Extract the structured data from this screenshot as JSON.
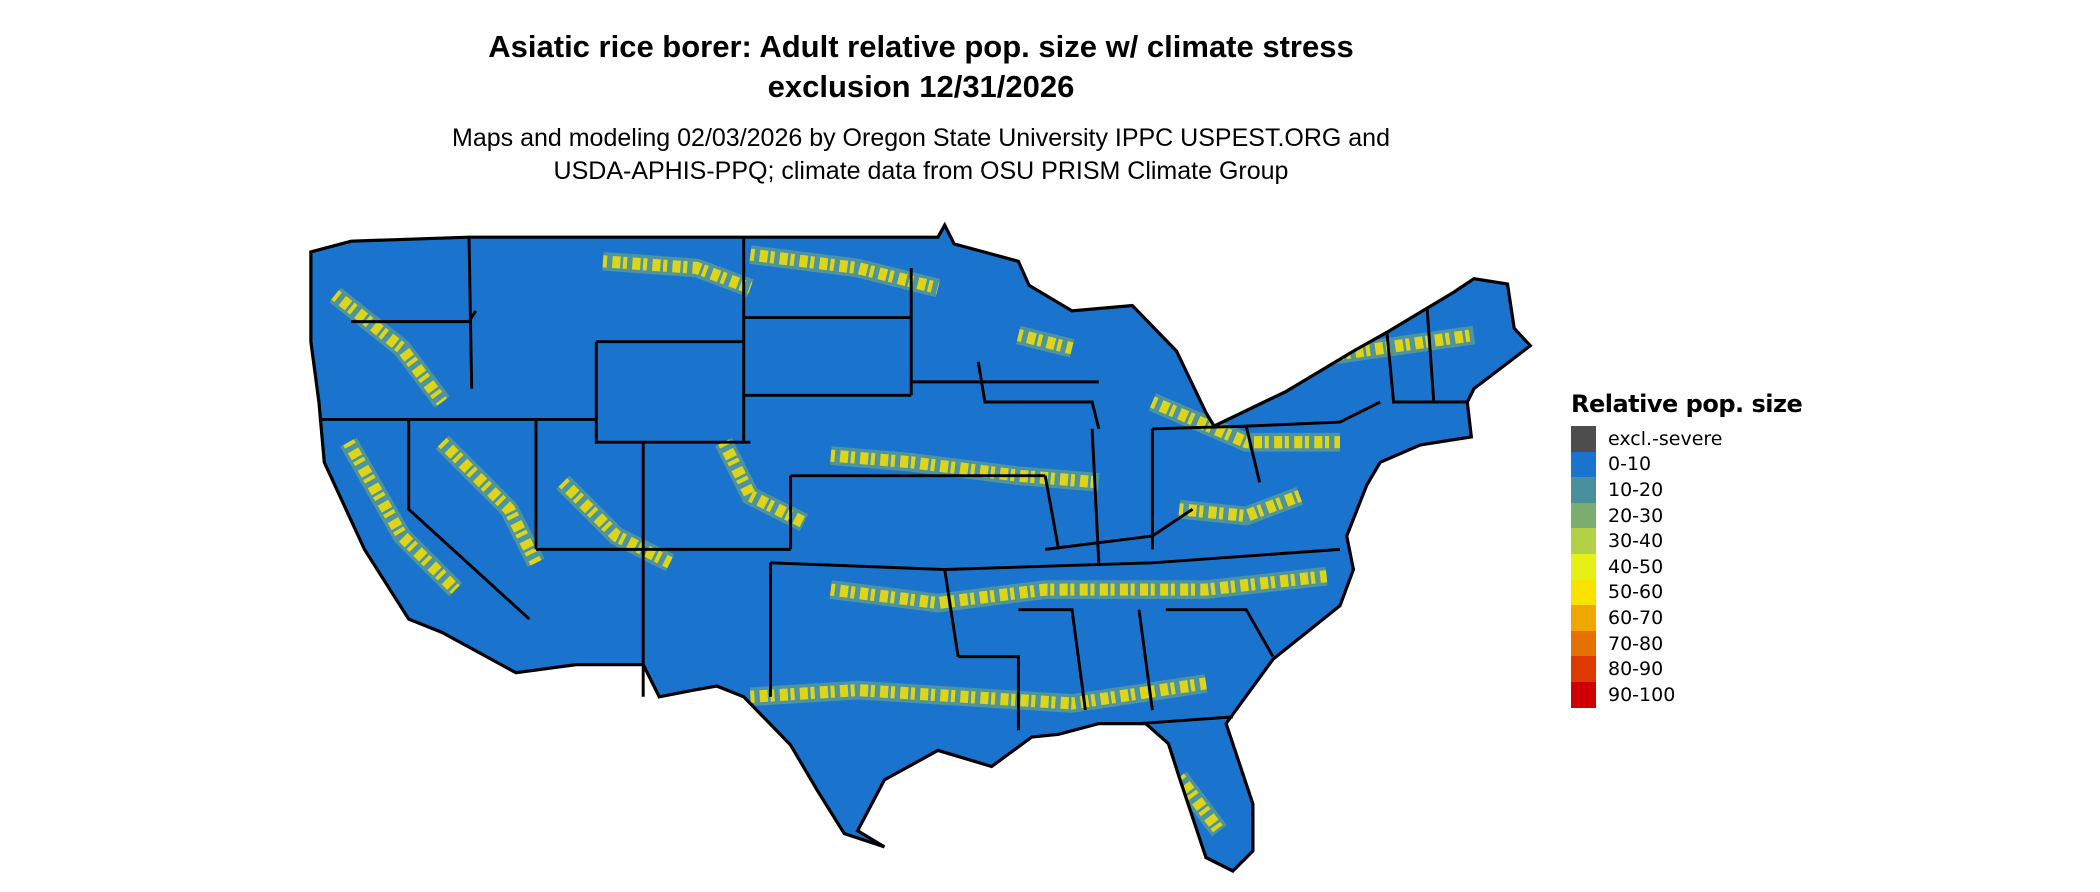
{
  "chart_data": {
    "type": "map",
    "title": "Asiatic rice borer: Adult relative pop. size w/ climate stress exclusion 12/31/2026",
    "title_lines": [
      "Asiatic rice borer: Adult relative pop. size w/ climate stress",
      "exclusion 12/31/2026"
    ],
    "subtitle_lines": [
      "Maps and modeling 02/03/2026 by Oregon State University IPPC USPEST.ORG and",
      "USDA-APHIS-PPQ; climate data from OSU PRISM Climate Group"
    ],
    "region": "Contiguous United States",
    "legend": {
      "title": "Relative pop. size",
      "placement": "right",
      "items": [
        {
          "label": "excl.-severe",
          "color": "#4d4d4d"
        },
        {
          "label": "0-10",
          "color": "#1a73cc"
        },
        {
          "label": "10-20",
          "color": "#4a8f9c"
        },
        {
          "label": "20-30",
          "color": "#7bad6e"
        },
        {
          "label": "30-40",
          "color": "#b2d147"
        },
        {
          "label": "40-50",
          "color": "#e6f016"
        },
        {
          "label": "50-60",
          "color": "#f9e100"
        },
        {
          "label": "60-70",
          "color": "#eea800"
        },
        {
          "label": "70-80",
          "color": "#e57200"
        },
        {
          "label": "80-90",
          "color": "#dc3a00"
        },
        {
          "label": "90-100",
          "color": "#d10000"
        }
      ]
    }
  }
}
